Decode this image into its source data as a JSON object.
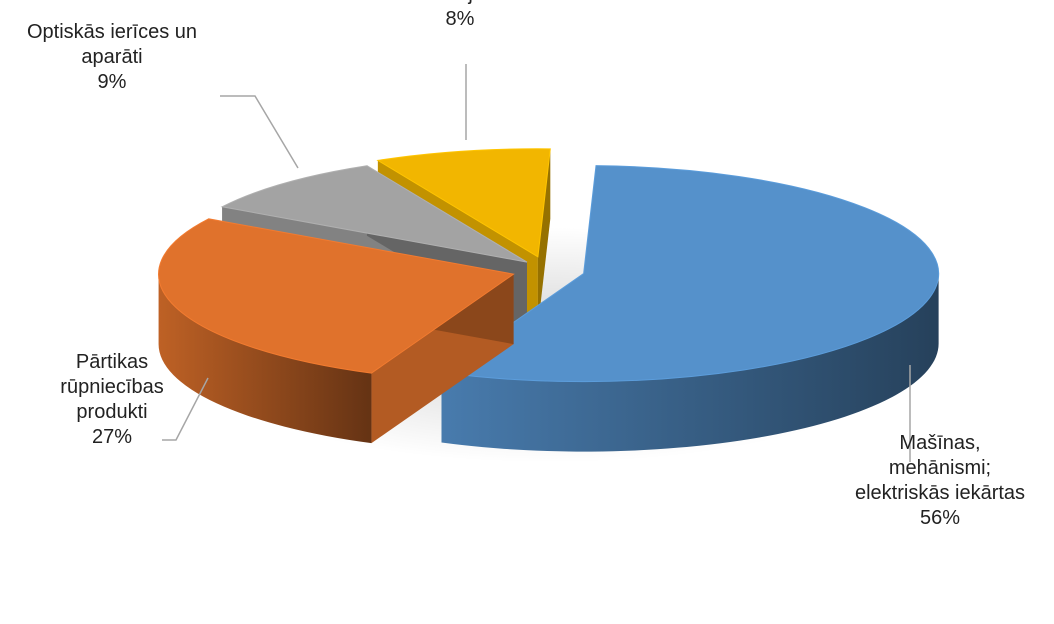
{
  "chart_data": {
    "type": "pie",
    "style": "3d-exploded",
    "title": "",
    "legend": "none",
    "unit": "%",
    "slices": [
      {
        "name": "Mašīnas, mehānismi; elektriskās iekārtas",
        "label_lines": [
          "Mašīnas,",
          "mehānismi;",
          "elektriskās iekārtas"
        ],
        "value": 56,
        "value_label": "56%",
        "color": "#5591cb"
      },
      {
        "name": "Pārtikas rūpniecības produkti",
        "label_lines": [
          "Pārtikas",
          "rūpniecības",
          "produkti"
        ],
        "value": 27,
        "value_label": "27%",
        "color": "#e0722c"
      },
      {
        "name": "Optiskās ierīces un aparāti",
        "label_lines": [
          "Optiskās ierīces un",
          "aparāti"
        ],
        "value": 9,
        "value_label": "9%",
        "color": "#a3a3a3"
      },
      {
        "name": "Pārējās",
        "label_lines": [
          "Pārējās"
        ],
        "value": 8,
        "value_label": "8%",
        "color": "#f2b600"
      }
    ]
  }
}
